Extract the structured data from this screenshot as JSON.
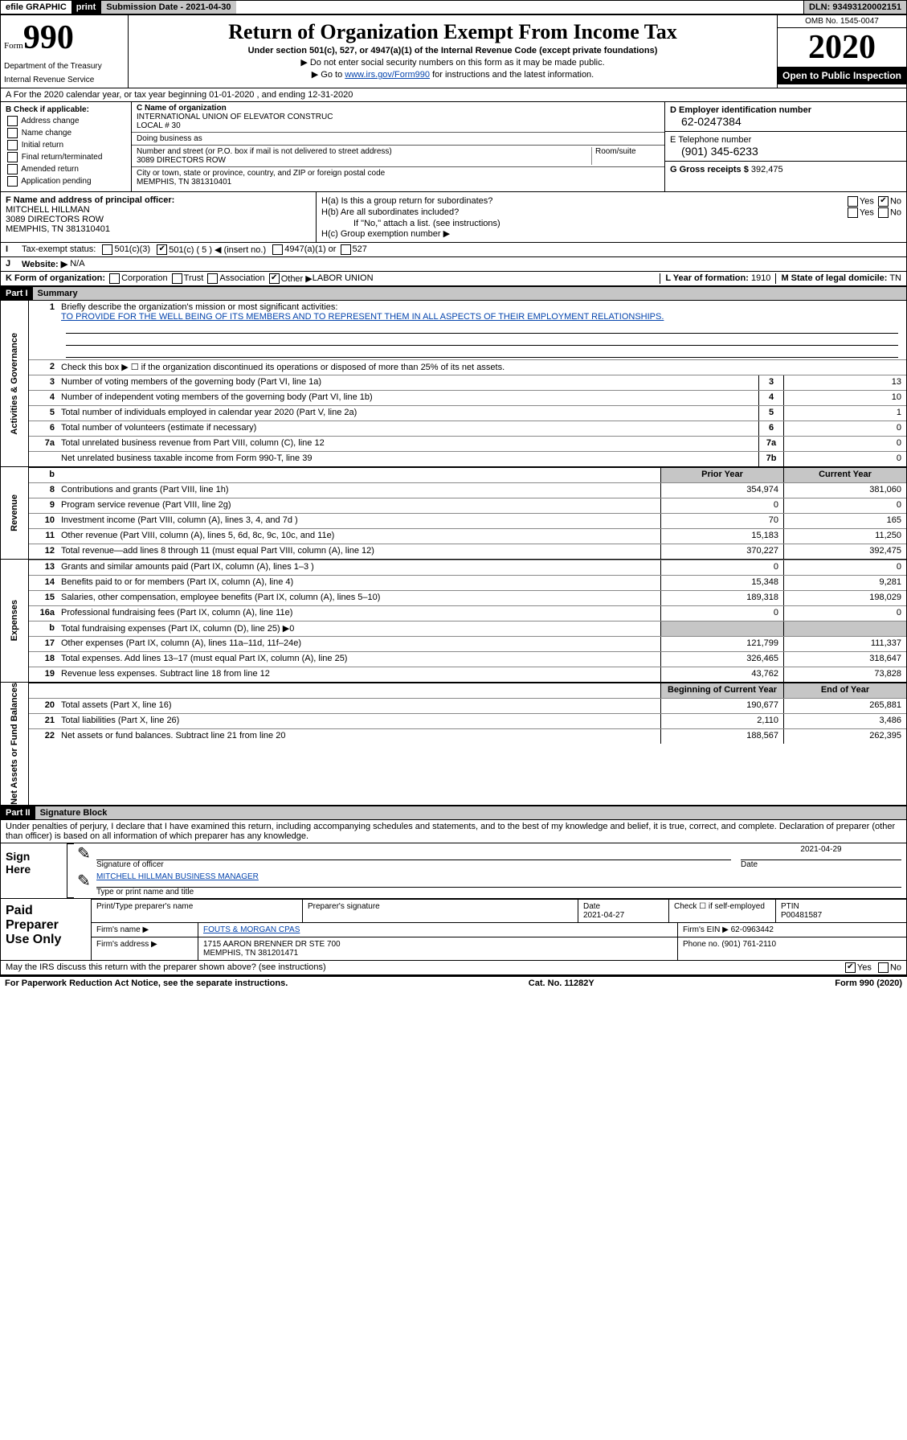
{
  "topbar": {
    "efile": "efile GRAPHIC",
    "print": "print",
    "subdate_label": "Submission Date - 2021-04-30",
    "dln": "DLN: 93493120002151"
  },
  "header": {
    "form_small": "Form",
    "form_big": "990",
    "title": "Return of Organization Exempt From Income Tax",
    "sub1": "Under section 501(c), 527, or 4947(a)(1) of the Internal Revenue Code (except private foundations)",
    "sub2": "▶ Do not enter social security numbers on this form as it may be made public.",
    "sub3_pre": "▶ Go to ",
    "sub3_link": "www.irs.gov/Form990",
    "sub3_post": " for instructions and the latest information.",
    "dept1": "Department of the Treasury",
    "dept2": "Internal Revenue Service",
    "omb": "OMB No. 1545-0047",
    "year": "2020",
    "open": "Open to Public Inspection"
  },
  "a_line": "A For the 2020 calendar year, or tax year beginning 01-01-2020   , and ending 12-31-2020",
  "b": {
    "label": "B Check if applicable:",
    "items": [
      "Address change",
      "Name change",
      "Initial return",
      "Final return/terminated",
      "Amended return",
      "Application pending"
    ]
  },
  "c": {
    "name_label": "C Name of organization",
    "name": "INTERNATIONAL UNION OF ELEVATOR CONSTRUC",
    "name2": "LOCAL # 30",
    "dba_label": "Doing business as",
    "addr_label": "Number and street (or P.O. box if mail is not delivered to street address)",
    "room": "Room/suite",
    "addr": "3089 DIRECTORS ROW",
    "city_label": "City or town, state or province, country, and ZIP or foreign postal code",
    "city": "MEMPHIS, TN  381310401"
  },
  "d": {
    "label": "D Employer identification number",
    "ein": "62-0247384"
  },
  "e": {
    "label": "E Telephone number",
    "phone": "(901) 345-6233"
  },
  "g": {
    "label": "G Gross receipts $",
    "amount": "392,475"
  },
  "f": {
    "label": "F Name and address of principal officer:",
    "name": "MITCHELL HILLMAN",
    "addr1": "3089 DIRECTORS ROW",
    "addr2": "MEMPHIS, TN  381310401"
  },
  "h": {
    "a": "H(a)  Is this a group return for subordinates?",
    "b": "H(b)  Are all subordinates included?",
    "b_note": "If \"No,\" attach a list. (see instructions)",
    "c": "H(c)  Group exemption number ▶"
  },
  "i": {
    "label": "Tax-exempt status:",
    "opt1": "501(c)(3)",
    "opt2": "501(c) ( 5 ) ◀ (insert no.)",
    "opt3": "4947(a)(1) or",
    "opt4": "527"
  },
  "j": {
    "label": "Website: ▶",
    "val": "N/A"
  },
  "k": {
    "label": "K Form of organization:",
    "opts": [
      "Corporation",
      "Trust",
      "Association",
      "Other ▶"
    ],
    "other": "LABOR UNION"
  },
  "l": {
    "label": "L Year of formation:",
    "val": "1910"
  },
  "m": {
    "label": "M State of legal domicile:",
    "val": "TN"
  },
  "part1": {
    "bar": "Part I",
    "title": "Summary"
  },
  "summary": {
    "line1_label": "Briefly describe the organization's mission or most significant activities:",
    "line1_text": "TO PROVIDE FOR THE WELL BEING OF ITS MEMBERS AND TO REPRESENT THEM IN ALL ASPECTS OF THEIR EMPLOYMENT RELATIONSHIPS.",
    "line2": "Check this box ▶ ☐  if the organization discontinued its operations or disposed of more than 25% of its net assets.",
    "rows_gov": [
      {
        "n": "3",
        "d": "Number of voting members of the governing body (Part VI, line 1a)",
        "box": "3",
        "v": "13"
      },
      {
        "n": "4",
        "d": "Number of independent voting members of the governing body (Part VI, line 1b)",
        "box": "4",
        "v": "10"
      },
      {
        "n": "5",
        "d": "Total number of individuals employed in calendar year 2020 (Part V, line 2a)",
        "box": "5",
        "v": "1"
      },
      {
        "n": "6",
        "d": "Total number of volunteers (estimate if necessary)",
        "box": "6",
        "v": "0"
      },
      {
        "n": "7a",
        "d": "Total unrelated business revenue from Part VIII, column (C), line 12",
        "box": "7a",
        "v": "0"
      },
      {
        "n": "",
        "d": "Net unrelated business taxable income from Form 990-T, line 39",
        "box": "7b",
        "v": "0"
      }
    ],
    "hdr_prior": "Prior Year",
    "hdr_current": "Current Year",
    "rows_rev": [
      {
        "n": "8",
        "d": "Contributions and grants (Part VIII, line 1h)",
        "p": "354,974",
        "c": "381,060"
      },
      {
        "n": "9",
        "d": "Program service revenue (Part VIII, line 2g)",
        "p": "0",
        "c": "0"
      },
      {
        "n": "10",
        "d": "Investment income (Part VIII, column (A), lines 3, 4, and 7d )",
        "p": "70",
        "c": "165"
      },
      {
        "n": "11",
        "d": "Other revenue (Part VIII, column (A), lines 5, 6d, 8c, 9c, 10c, and 11e)",
        "p": "15,183",
        "c": "11,250"
      },
      {
        "n": "12",
        "d": "Total revenue—add lines 8 through 11 (must equal Part VIII, column (A), line 12)",
        "p": "370,227",
        "c": "392,475"
      }
    ],
    "rows_exp": [
      {
        "n": "13",
        "d": "Grants and similar amounts paid (Part IX, column (A), lines 1–3 )",
        "p": "0",
        "c": "0"
      },
      {
        "n": "14",
        "d": "Benefits paid to or for members (Part IX, column (A), line 4)",
        "p": "15,348",
        "c": "9,281"
      },
      {
        "n": "15",
        "d": "Salaries, other compensation, employee benefits (Part IX, column (A), lines 5–10)",
        "p": "189,318",
        "c": "198,029"
      },
      {
        "n": "16a",
        "d": "Professional fundraising fees (Part IX, column (A), line 11e)",
        "p": "0",
        "c": "0"
      },
      {
        "n": "b",
        "d": "Total fundraising expenses (Part IX, column (D), line 25) ▶0",
        "p": "",
        "c": ""
      },
      {
        "n": "17",
        "d": "Other expenses (Part IX, column (A), lines 11a–11d, 11f–24e)",
        "p": "121,799",
        "c": "111,337"
      },
      {
        "n": "18",
        "d": "Total expenses. Add lines 13–17 (must equal Part IX, column (A), line 25)",
        "p": "326,465",
        "c": "318,647"
      },
      {
        "n": "19",
        "d": "Revenue less expenses. Subtract line 18 from line 12",
        "p": "43,762",
        "c": "73,828"
      }
    ],
    "hdr_begin": "Beginning of Current Year",
    "hdr_end": "End of Year",
    "rows_net": [
      {
        "n": "20",
        "d": "Total assets (Part X, line 16)",
        "p": "190,677",
        "c": "265,881"
      },
      {
        "n": "21",
        "d": "Total liabilities (Part X, line 26)",
        "p": "2,110",
        "c": "3,486"
      },
      {
        "n": "22",
        "d": "Net assets or fund balances. Subtract line 21 from line 20",
        "p": "188,567",
        "c": "262,395"
      }
    ]
  },
  "spines": {
    "gov": "Activities & Governance",
    "rev": "Revenue",
    "exp": "Expenses",
    "net": "Net Assets or Fund Balances"
  },
  "part2": {
    "bar": "Part II",
    "title": "Signature Block"
  },
  "perjury": "Under penalties of perjury, I declare that I have examined this return, including accompanying schedules and statements, and to the best of my knowledge and belief, it is true, correct, and complete. Declaration of preparer (other than officer) is based on all information of which preparer has any knowledge.",
  "sign": {
    "here": "Sign Here",
    "sig_label": "Signature of officer",
    "date": "2021-04-29",
    "date_label": "Date",
    "name": "MITCHELL HILLMAN  BUSINESS MANAGER",
    "name_label": "Type or print name and title"
  },
  "paid": {
    "title": "Paid Preparer Use Only",
    "h1": "Print/Type preparer's name",
    "h2": "Preparer's signature",
    "h3": "Date",
    "date": "2021-04-27",
    "h4": "Check ☐ if self-employed",
    "h5": "PTIN",
    "ptin": "P00481587",
    "firm_label": "Firm's name    ▶",
    "firm": "FOUTS & MORGAN CPAS",
    "ein_label": "Firm's EIN ▶",
    "ein": "62-0963442",
    "addr_label": "Firm's address ▶",
    "addr1": "1715 AARON BRENNER DR STE 700",
    "addr2": "MEMPHIS, TN  381201471",
    "phone_label": "Phone no.",
    "phone": "(901) 761-2110"
  },
  "discuss": "May the IRS discuss this return with the preparer shown above? (see instructions)",
  "footer": {
    "left": "For Paperwork Reduction Act Notice, see the separate instructions.",
    "mid": "Cat. No. 11282Y",
    "right": "Form 990 (2020)"
  }
}
